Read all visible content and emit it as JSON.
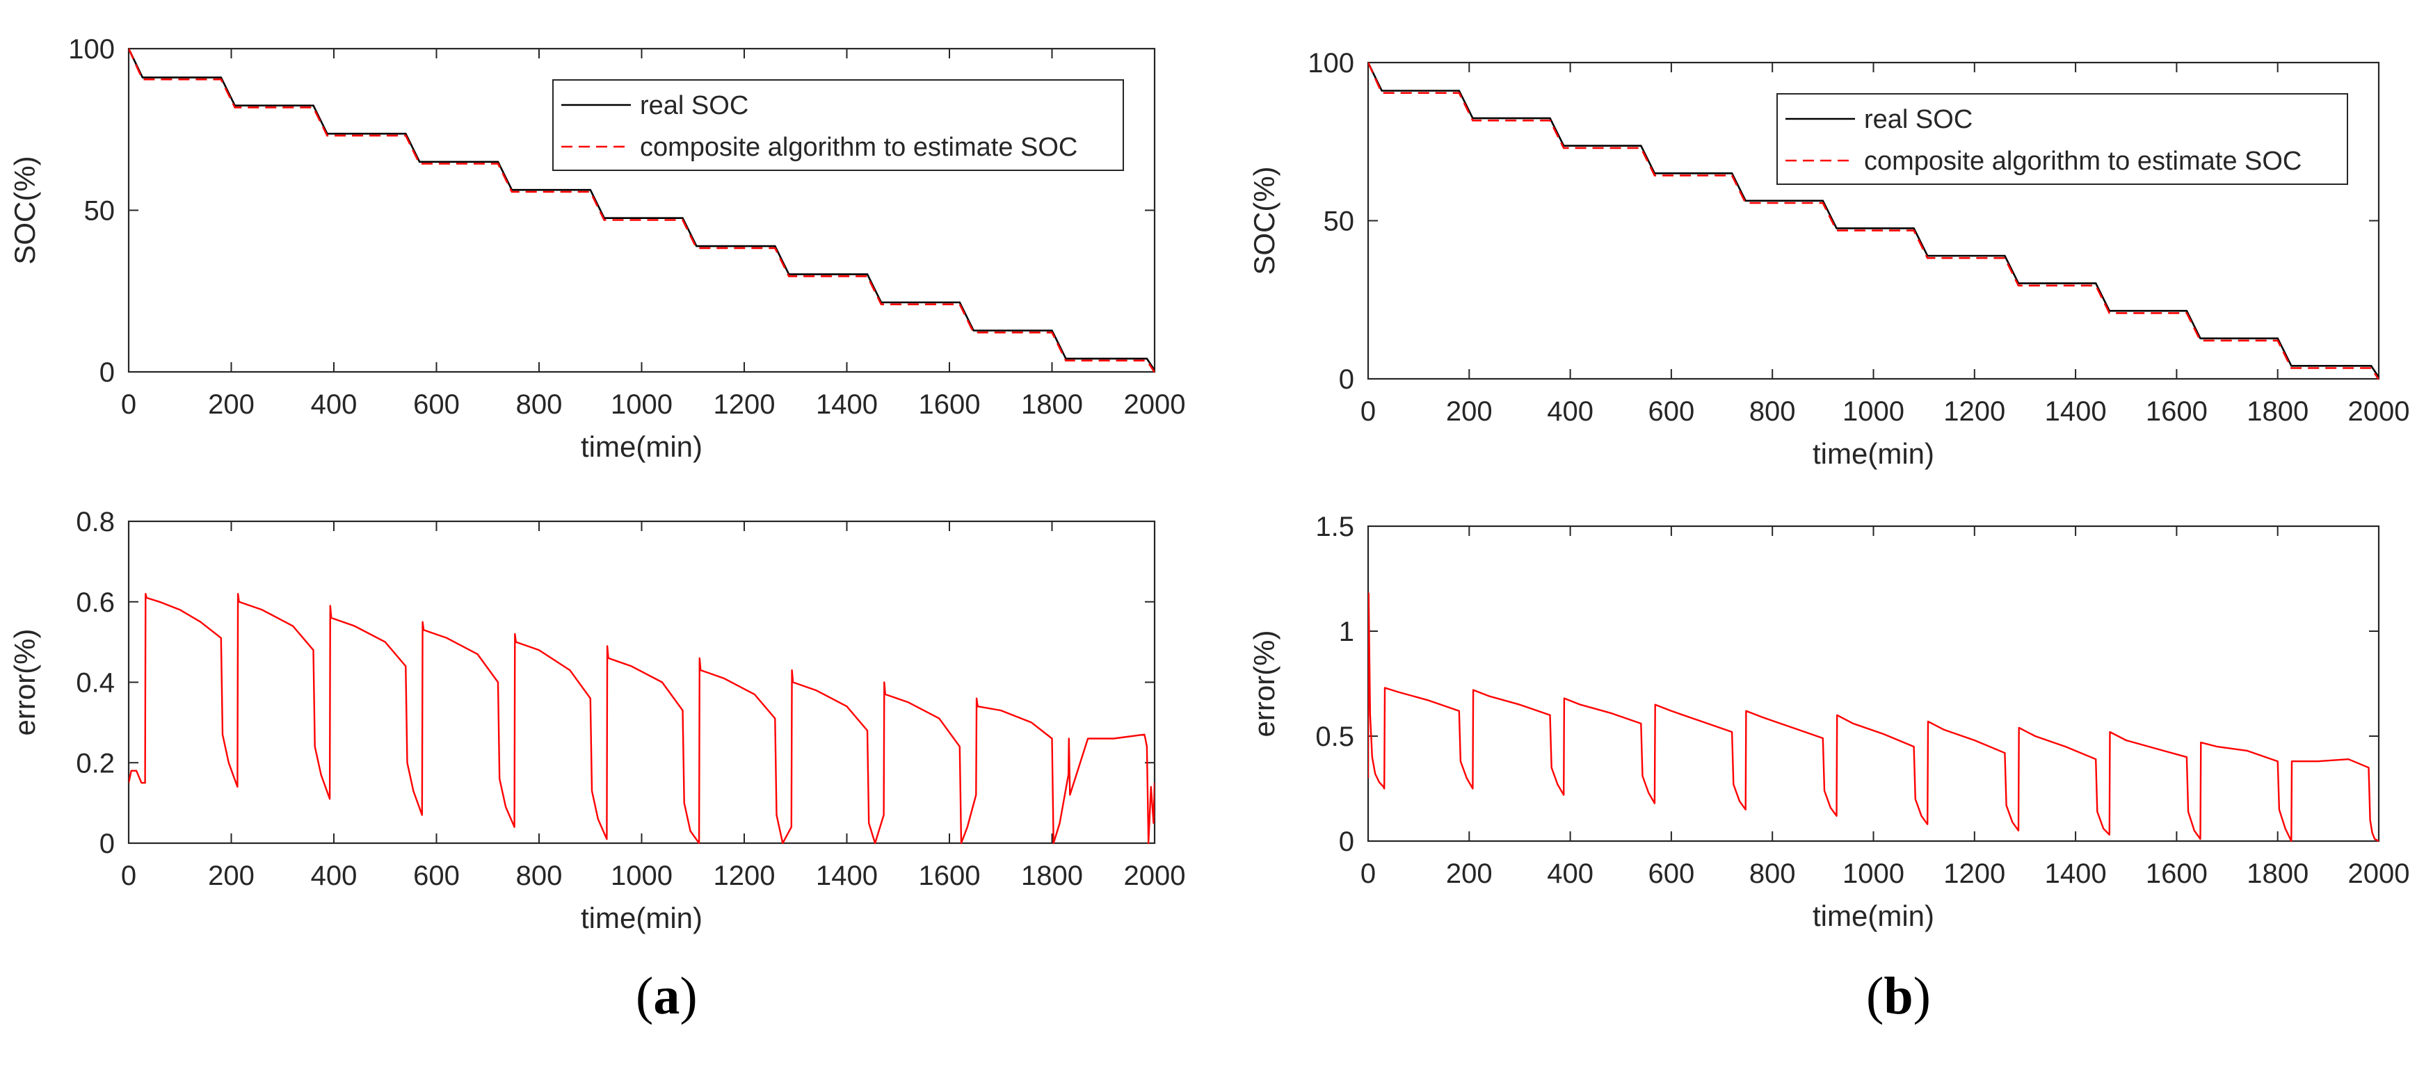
{
  "colors": {
    "real": "#000000",
    "estimate": "#ff0000",
    "axis": "#262626",
    "background": "#ffffff"
  },
  "panels": {
    "a": {
      "label_open": "(",
      "label_letter": "a",
      "label_close": ")"
    },
    "b": {
      "label_open": "(",
      "label_letter": "b",
      "label_close": ")"
    }
  },
  "chart_data": [
    {
      "id": "a-soc",
      "panel": "a",
      "type": "line",
      "xlabel": "time(min)",
      "ylabel": "SOC(%)",
      "xlim": [
        0,
        2000
      ],
      "ylim": [
        0,
        100
      ],
      "xticks": [
        0,
        200,
        400,
        600,
        800,
        1000,
        1200,
        1400,
        1600,
        1800,
        2000
      ],
      "yticks": [
        0,
        50,
        100
      ],
      "legend_position": "top-right",
      "steps": {
        "levels": [
          100,
          91.1,
          82.4,
          73.7,
          65.0,
          56.3,
          47.6,
          38.9,
          30.2,
          21.5,
          12.8,
          4.1
        ],
        "rest_end": [
          0,
          180,
          360,
          540,
          720,
          900,
          1080,
          1260,
          1440,
          1620,
          1800,
          1985
        ],
        "discharge_end": [
          27,
          207,
          387,
          567,
          747,
          927,
          1107,
          1287,
          1467,
          1647,
          1827,
          2000
        ],
        "final_value": 0.5
      },
      "series": [
        {
          "name": "real SOC",
          "style": "solid",
          "color": "#000000",
          "estimate_offset": 0
        },
        {
          "name": "composite algorithm to estimate SOC",
          "style": "dashed",
          "color": "#ff0000",
          "estimate_offset": -0.6
        }
      ]
    },
    {
      "id": "a-error",
      "panel": "a",
      "type": "line",
      "xlabel": "time(min)",
      "ylabel": "error(%)",
      "xlim": [
        0,
        2000
      ],
      "ylim": [
        0,
        0.8
      ],
      "xticks": [
        0,
        200,
        400,
        600,
        800,
        1000,
        1200,
        1400,
        1600,
        1800,
        2000
      ],
      "yticks": [
        0,
        0.2,
        0.4,
        0.6,
        0.8
      ],
      "series": [
        {
          "name": "error",
          "color": "#ff0000",
          "x": [
            0,
            5,
            15,
            25,
            32,
            33,
            35,
            60,
            100,
            140,
            180,
            183,
            195,
            212,
            213,
            215,
            260,
            320,
            360,
            363,
            375,
            392,
            393,
            395,
            440,
            500,
            540,
            543,
            555,
            572,
            573,
            575,
            620,
            680,
            720,
            723,
            735,
            752,
            753,
            755,
            800,
            860,
            900,
            903,
            915,
            932,
            933,
            935,
            980,
            1040,
            1080,
            1083,
            1095,
            1112,
            1113,
            1115,
            1160,
            1220,
            1260,
            1263,
            1275,
            1292,
            1293,
            1295,
            1340,
            1400,
            1440,
            1443,
            1455,
            1472,
            1473,
            1475,
            1520,
            1580,
            1620,
            1623,
            1635,
            1652,
            1653,
            1655,
            1700,
            1760,
            1800,
            1803,
            1815,
            1832,
            1833,
            1835,
            1870,
            1920,
            1980,
            1982,
            1985,
            1988,
            1993,
            1998,
            2000
          ],
          "y": [
            0.15,
            0.18,
            0.18,
            0.15,
            0.15,
            0.62,
            0.61,
            0.6,
            0.58,
            0.55,
            0.51,
            0.27,
            0.2,
            0.14,
            0.62,
            0.6,
            0.58,
            0.54,
            0.48,
            0.24,
            0.17,
            0.11,
            0.59,
            0.56,
            0.54,
            0.5,
            0.44,
            0.2,
            0.13,
            0.07,
            0.55,
            0.53,
            0.51,
            0.47,
            0.4,
            0.16,
            0.09,
            0.04,
            0.52,
            0.5,
            0.48,
            0.43,
            0.36,
            0.13,
            0.06,
            0.01,
            0.49,
            0.46,
            0.44,
            0.4,
            0.33,
            0.1,
            0.03,
            0,
            0.46,
            0.43,
            0.41,
            0.37,
            0.31,
            0.07,
            0,
            0.04,
            0.43,
            0.4,
            0.38,
            0.34,
            0.28,
            0.05,
            0,
            0.07,
            0.4,
            0.37,
            0.35,
            0.31,
            0.24,
            0,
            0.04,
            0.12,
            0.36,
            0.34,
            0.33,
            0.3,
            0.26,
            0,
            0.05,
            0.17,
            0.26,
            0.12,
            0.26,
            0.26,
            0.27,
            0.26,
            0.24,
            0,
            0.14,
            0.05,
            0.15
          ]
        }
      ]
    },
    {
      "id": "b-soc",
      "panel": "b",
      "type": "line",
      "xlabel": "time(min)",
      "ylabel": "SOC(%)",
      "xlim": [
        0,
        2000
      ],
      "ylim": [
        0,
        100
      ],
      "xticks": [
        0,
        200,
        400,
        600,
        800,
        1000,
        1200,
        1400,
        1600,
        1800,
        2000
      ],
      "yticks": [
        0,
        50,
        100
      ],
      "legend_position": "top-right",
      "steps": {
        "levels": [
          100,
          91.1,
          82.4,
          73.7,
          65.0,
          56.3,
          47.6,
          38.9,
          30.2,
          21.5,
          12.8,
          4.1
        ],
        "rest_end": [
          0,
          180,
          360,
          540,
          720,
          900,
          1080,
          1260,
          1440,
          1620,
          1800,
          1985
        ],
        "discharge_end": [
          27,
          207,
          387,
          567,
          747,
          927,
          1107,
          1287,
          1467,
          1647,
          1827,
          2000
        ],
        "final_value": 0.5
      },
      "series": [
        {
          "name": "real SOC",
          "style": "solid",
          "color": "#000000",
          "estimate_offset": 0
        },
        {
          "name": "composite algorithm to estimate SOC",
          "style": "dashed",
          "color": "#ff0000",
          "estimate_offset": -0.7
        }
      ]
    },
    {
      "id": "b-error",
      "panel": "b",
      "type": "line",
      "xlabel": "time(min)",
      "ylabel": "error(%)",
      "xlim": [
        0,
        2000
      ],
      "ylim": [
        0,
        1.5
      ],
      "xticks": [
        0,
        200,
        400,
        600,
        800,
        1000,
        1200,
        1400,
        1600,
        1800,
        2000
      ],
      "yticks": [
        0,
        0.5,
        1,
        1.5
      ],
      "series": [
        {
          "name": "error",
          "color": "#ff0000",
          "x": [
            0,
            1,
            4,
            8,
            14,
            22,
            30,
            32,
            33,
            60,
            120,
            180,
            183,
            195,
            207,
            208,
            240,
            300,
            360,
            363,
            375,
            387,
            388,
            420,
            480,
            540,
            543,
            555,
            567,
            568,
            600,
            660,
            720,
            723,
            735,
            747,
            748,
            780,
            840,
            900,
            903,
            915,
            927,
            928,
            960,
            1020,
            1080,
            1083,
            1095,
            1107,
            1108,
            1140,
            1200,
            1260,
            1263,
            1275,
            1287,
            1288,
            1320,
            1380,
            1440,
            1443,
            1455,
            1467,
            1468,
            1500,
            1560,
            1620,
            1623,
            1635,
            1647,
            1648,
            1680,
            1740,
            1800,
            1803,
            1815,
            1827,
            1828,
            1835,
            1880,
            1940,
            1980,
            1983,
            1987,
            1992,
            2000
          ],
          "y": [
            0.3,
            1.18,
            0.6,
            0.4,
            0.32,
            0.28,
            0.26,
            0.25,
            0.73,
            0.71,
            0.67,
            0.62,
            0.38,
            0.3,
            0.25,
            0.72,
            0.69,
            0.65,
            0.6,
            0.35,
            0.27,
            0.22,
            0.68,
            0.65,
            0.61,
            0.56,
            0.31,
            0.23,
            0.18,
            0.65,
            0.62,
            0.57,
            0.52,
            0.27,
            0.19,
            0.15,
            0.62,
            0.59,
            0.54,
            0.49,
            0.24,
            0.16,
            0.12,
            0.6,
            0.56,
            0.51,
            0.45,
            0.2,
            0.12,
            0.08,
            0.57,
            0.53,
            0.48,
            0.42,
            0.17,
            0.09,
            0.05,
            0.54,
            0.5,
            0.45,
            0.39,
            0.14,
            0.06,
            0.03,
            0.52,
            0.48,
            0.44,
            0.4,
            0.14,
            0.05,
            0.01,
            0.47,
            0.45,
            0.43,
            0.38,
            0.15,
            0.06,
            0,
            0.38,
            0.38,
            0.38,
            0.39,
            0.35,
            0.1,
            0.04,
            0.01,
            0
          ]
        }
      ]
    }
  ]
}
